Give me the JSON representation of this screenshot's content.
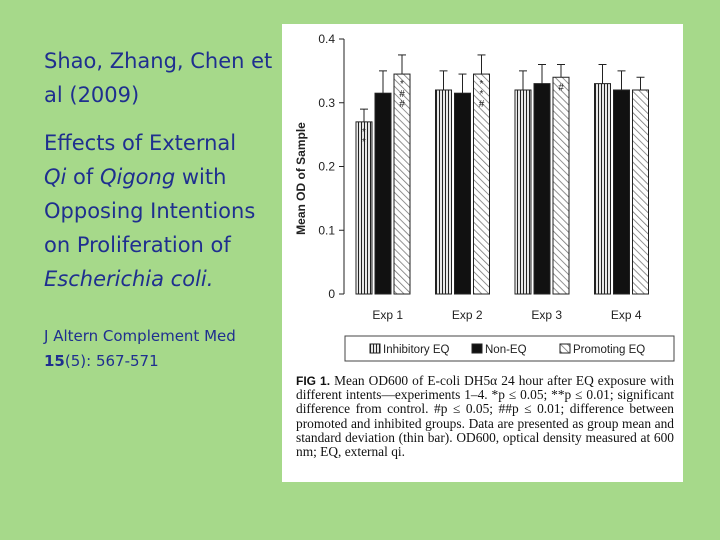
{
  "slide": {
    "authors": "Shao, Zhang, Chen et al (2009)",
    "title_1": "Effects of External",
    "title_qi": "Qi",
    "title_of": " of ",
    "title_qigong": "Qigong",
    "title_with": " with",
    "title_2": "Opposing Intentions on Proliferation of",
    "title_species": "Escherichia coli.",
    "citation_journal": "J Altern Complement Med",
    "citation_volume": "15",
    "citation_pages": "(5): 567-571"
  },
  "figure": {
    "caption_label": "FIG 1.",
    "caption_text": "Mean OD600 of E-coli DH5α 24 hour after EQ exposure with different intents—experiments 1–4. *p ≤ 0.05; **p ≤ 0.01; significant difference from control. #p ≤ 0.05; ##p ≤ 0.01; difference between promoted and inhibited groups. Data are presented as group mean and standard deviation (thin bar). OD600, optical density measured at 600 nm; EQ, external qi."
  },
  "chart_data": {
    "type": "bar",
    "ylabel": "Mean OD of Sample",
    "ylim": [
      0,
      0.4
    ],
    "yticks": [
      "0",
      "0.1",
      "0.2",
      "0.3",
      "0.4"
    ],
    "categories": [
      "Exp 1",
      "Exp 2",
      "Exp 3",
      "Exp 4"
    ],
    "series": [
      {
        "name": "Inhibitory EQ",
        "values": [
          0.27,
          0.32,
          0.32,
          0.33
        ],
        "errors": [
          0.02,
          0.03,
          0.03,
          0.03
        ],
        "marks": [
          "*\n*",
          "",
          "",
          ""
        ]
      },
      {
        "name": "Non-EQ",
        "values": [
          0.315,
          0.315,
          0.33,
          0.32
        ],
        "errors": [
          0.035,
          0.03,
          0.03,
          0.03
        ],
        "marks": [
          "",
          "",
          "",
          ""
        ]
      },
      {
        "name": "Promoting EQ",
        "values": [
          0.345,
          0.345,
          0.34,
          0.32
        ],
        "errors": [
          0.03,
          0.03,
          0.02,
          0.02
        ],
        "marks": [
          "*\n#\n#",
          "*\n*\n#",
          "#",
          ""
        ]
      }
    ],
    "legend_position": "bottom",
    "grid": false
  }
}
